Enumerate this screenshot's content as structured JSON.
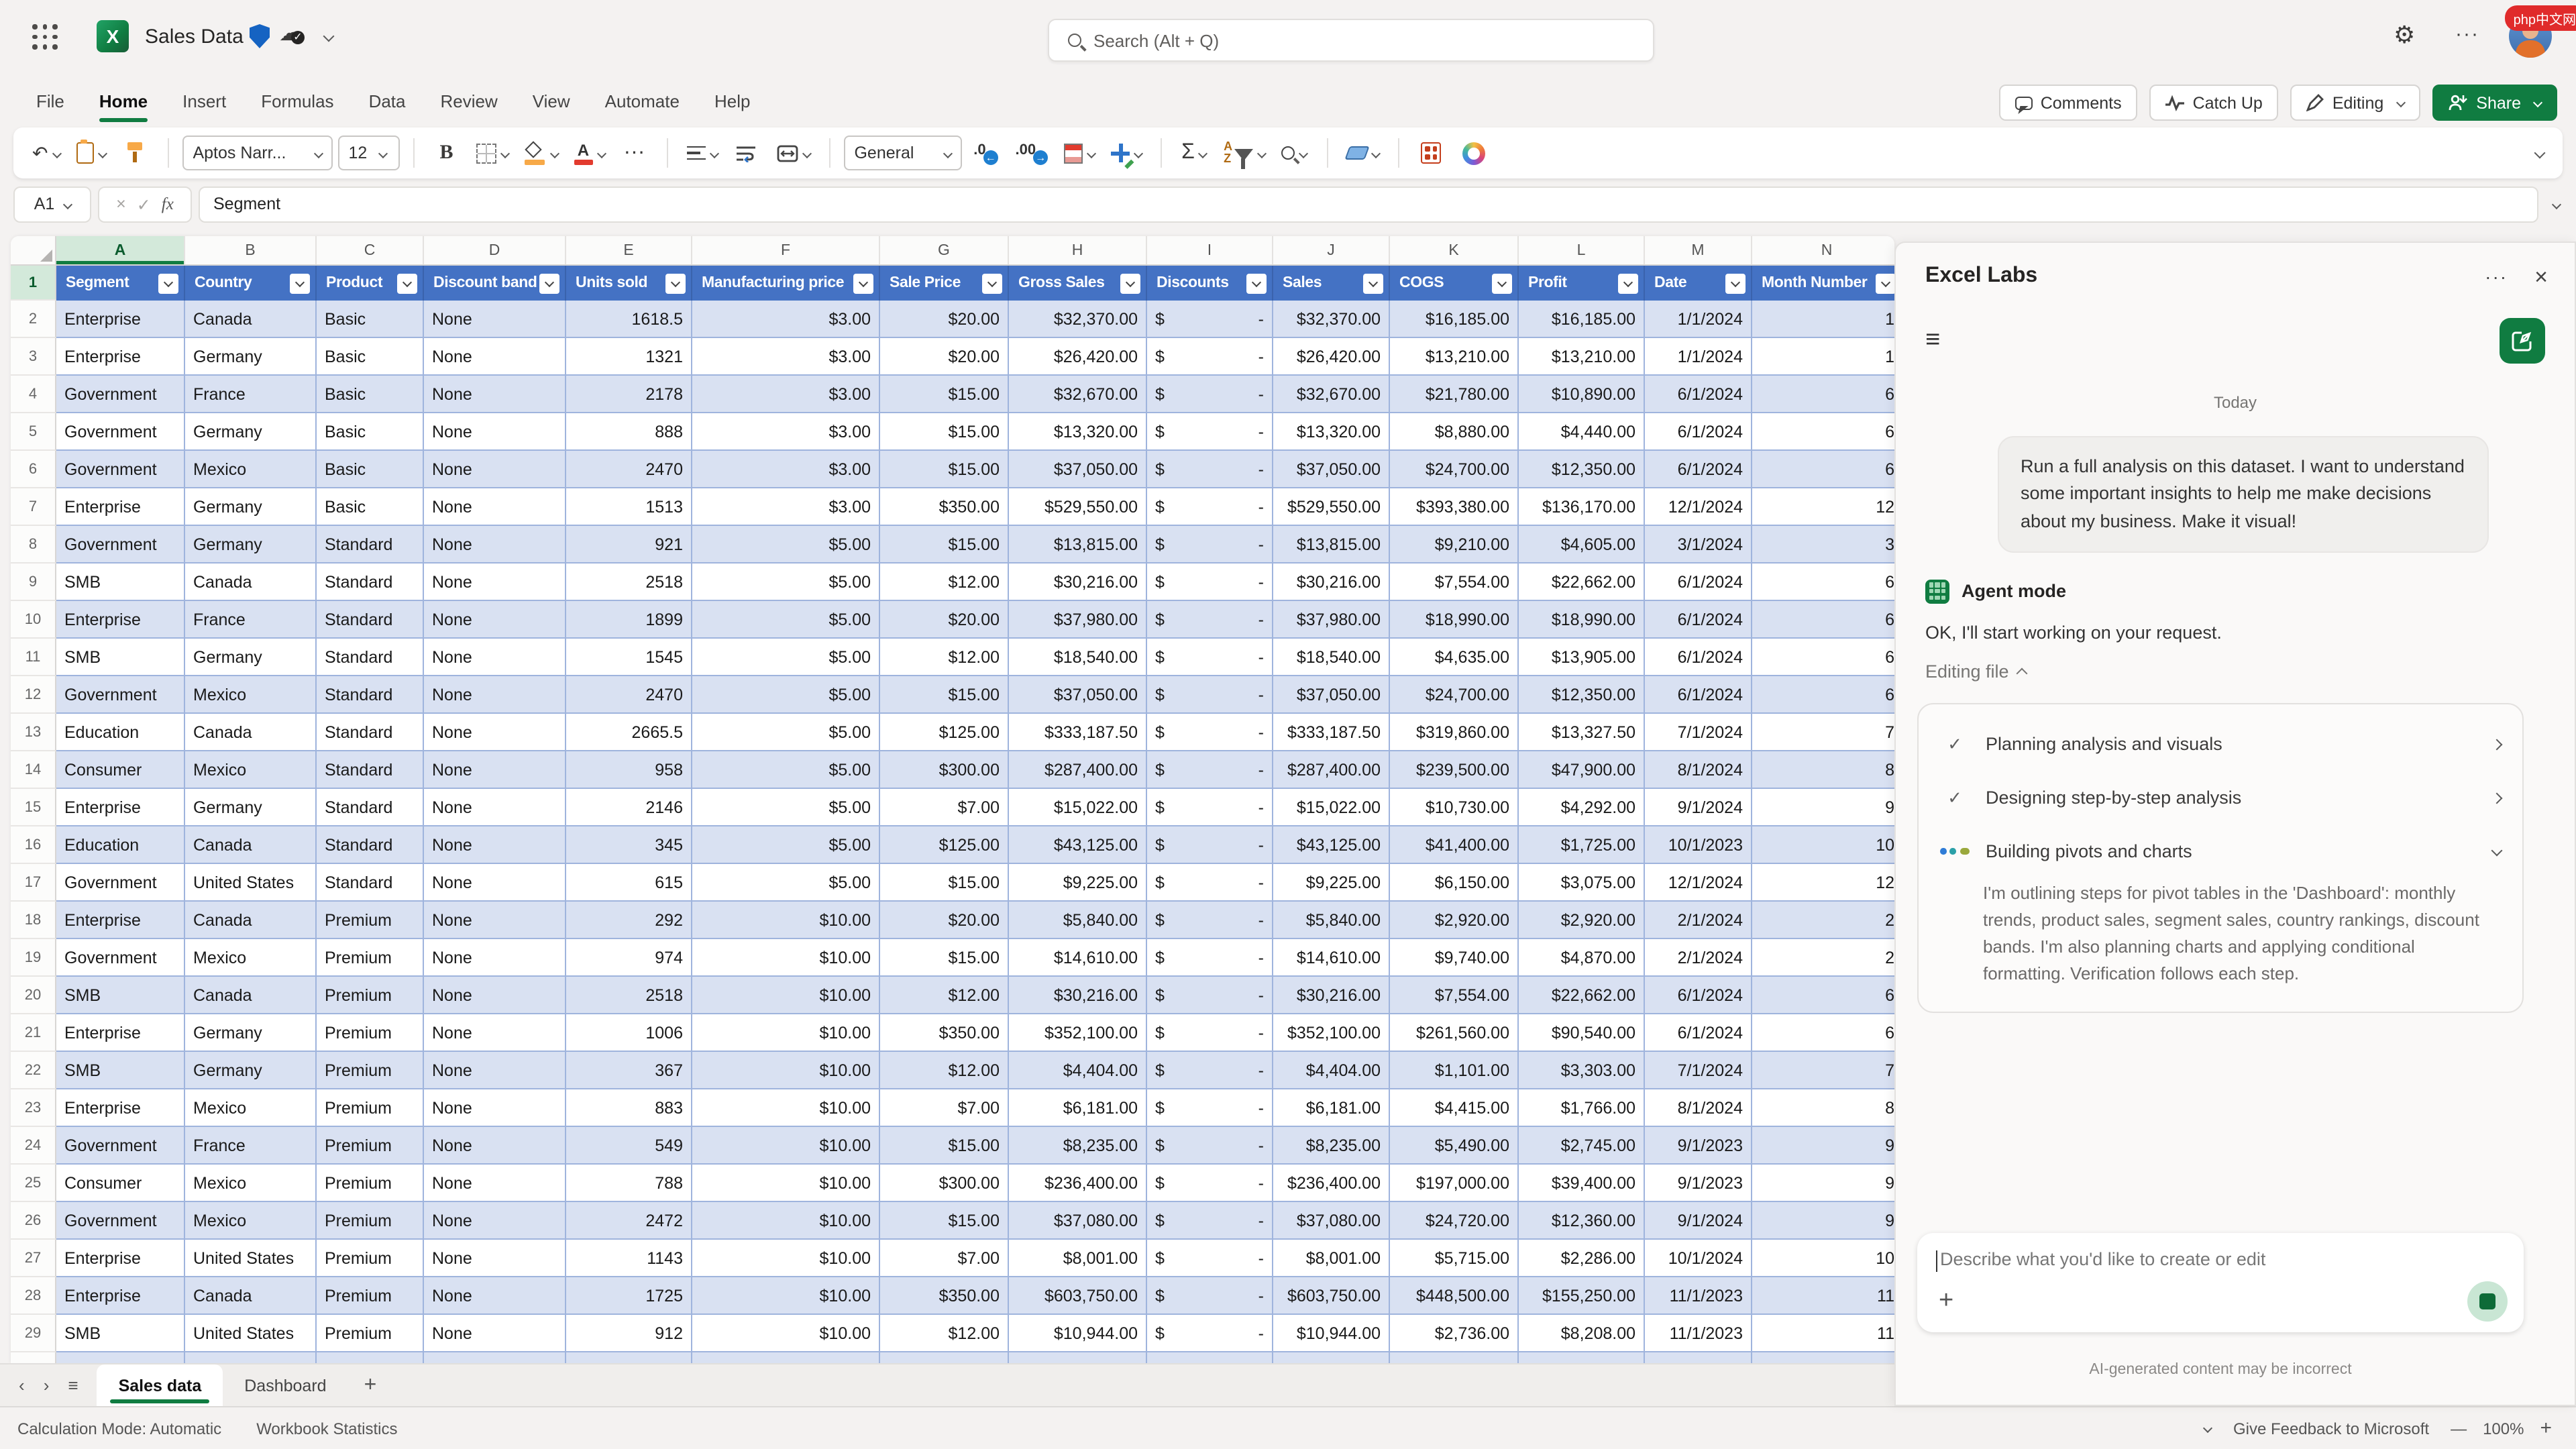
{
  "watermark": {
    "text": "php中文网"
  },
  "titlebar": {
    "title": "Sales Data",
    "search_placeholder": "Search (Alt + Q)"
  },
  "header_actions": {
    "comments": "Comments",
    "catch_up": "Catch Up",
    "editing": "Editing",
    "share": "Share"
  },
  "ribbon": {
    "tabs": [
      "File",
      "Home",
      "Insert",
      "Formulas",
      "Data",
      "Review",
      "View",
      "Automate",
      "Help"
    ],
    "active_tab": "Home"
  },
  "toolbar": {
    "font_name": "Aptos Narr...",
    "font_size": "12",
    "bold_label": "B",
    "number_format": "General",
    "decimal_left": ".0",
    "decimal_right": ".00",
    "autosum": "Σ",
    "sort_label": "A Z",
    "more": "···"
  },
  "formula_bar": {
    "name_box": "A1",
    "cancel": "×",
    "enter": "✓",
    "fx": "fx",
    "formula": "Segment"
  },
  "sheet": {
    "columns": [
      "A",
      "B",
      "C",
      "D",
      "E",
      "F",
      "G",
      "H",
      "I",
      "J",
      "K",
      "L",
      "M",
      "N"
    ],
    "selected_column": "A",
    "selected_row": "1",
    "discount_symbol": "$",
    "headers": [
      "Segment",
      "Country",
      "Product",
      "Discount band",
      "Units sold",
      "Manufacturing price",
      "Sale Price",
      "Gross Sales",
      "Discounts",
      "Sales",
      "COGS",
      "Profit",
      "Date",
      "Month Number"
    ],
    "rows": [
      [
        "Enterprise",
        "Canada",
        "Basic",
        "None",
        "1618.5",
        "$3.00",
        "$20.00",
        "$32,370.00",
        "-",
        "$32,370.00",
        "$16,185.00",
        "$16,185.00",
        "1/1/2024",
        "1"
      ],
      [
        "Enterprise",
        "Germany",
        "Basic",
        "None",
        "1321",
        "$3.00",
        "$20.00",
        "$26,420.00",
        "-",
        "$26,420.00",
        "$13,210.00",
        "$13,210.00",
        "1/1/2024",
        "1"
      ],
      [
        "Government",
        "France",
        "Basic",
        "None",
        "2178",
        "$3.00",
        "$15.00",
        "$32,670.00",
        "-",
        "$32,670.00",
        "$21,780.00",
        "$10,890.00",
        "6/1/2024",
        "6"
      ],
      [
        "Government",
        "Germany",
        "Basic",
        "None",
        "888",
        "$3.00",
        "$15.00",
        "$13,320.00",
        "-",
        "$13,320.00",
        "$8,880.00",
        "$4,440.00",
        "6/1/2024",
        "6"
      ],
      [
        "Government",
        "Mexico",
        "Basic",
        "None",
        "2470",
        "$3.00",
        "$15.00",
        "$37,050.00",
        "-",
        "$37,050.00",
        "$24,700.00",
        "$12,350.00",
        "6/1/2024",
        "6"
      ],
      [
        "Enterprise",
        "Germany",
        "Basic",
        "None",
        "1513",
        "$3.00",
        "$350.00",
        "$529,550.00",
        "-",
        "$529,550.00",
        "$393,380.00",
        "$136,170.00",
        "12/1/2024",
        "12"
      ],
      [
        "Government",
        "Germany",
        "Standard",
        "None",
        "921",
        "$5.00",
        "$15.00",
        "$13,815.00",
        "-",
        "$13,815.00",
        "$9,210.00",
        "$4,605.00",
        "3/1/2024",
        "3"
      ],
      [
        "SMB",
        "Canada",
        "Standard",
        "None",
        "2518",
        "$5.00",
        "$12.00",
        "$30,216.00",
        "-",
        "$30,216.00",
        "$7,554.00",
        "$22,662.00",
        "6/1/2024",
        "6"
      ],
      [
        "Enterprise",
        "France",
        "Standard",
        "None",
        "1899",
        "$5.00",
        "$20.00",
        "$37,980.00",
        "-",
        "$37,980.00",
        "$18,990.00",
        "$18,990.00",
        "6/1/2024",
        "6"
      ],
      [
        "SMB",
        "Germany",
        "Standard",
        "None",
        "1545",
        "$5.00",
        "$12.00",
        "$18,540.00",
        "-",
        "$18,540.00",
        "$4,635.00",
        "$13,905.00",
        "6/1/2024",
        "6"
      ],
      [
        "Government",
        "Mexico",
        "Standard",
        "None",
        "2470",
        "$5.00",
        "$15.00",
        "$37,050.00",
        "-",
        "$37,050.00",
        "$24,700.00",
        "$12,350.00",
        "6/1/2024",
        "6"
      ],
      [
        "Education",
        "Canada",
        "Standard",
        "None",
        "2665.5",
        "$5.00",
        "$125.00",
        "$333,187.50",
        "-",
        "$333,187.50",
        "$319,860.00",
        "$13,327.50",
        "7/1/2024",
        "7"
      ],
      [
        "Consumer",
        "Mexico",
        "Standard",
        "None",
        "958",
        "$5.00",
        "$300.00",
        "$287,400.00",
        "-",
        "$287,400.00",
        "$239,500.00",
        "$47,900.00",
        "8/1/2024",
        "8"
      ],
      [
        "Enterprise",
        "Germany",
        "Standard",
        "None",
        "2146",
        "$5.00",
        "$7.00",
        "$15,022.00",
        "-",
        "$15,022.00",
        "$10,730.00",
        "$4,292.00",
        "9/1/2024",
        "9"
      ],
      [
        "Education",
        "Canada",
        "Standard",
        "None",
        "345",
        "$5.00",
        "$125.00",
        "$43,125.00",
        "-",
        "$43,125.00",
        "$41,400.00",
        "$1,725.00",
        "10/1/2023",
        "10"
      ],
      [
        "Government",
        "United States",
        "Standard",
        "None",
        "615",
        "$5.00",
        "$15.00",
        "$9,225.00",
        "-",
        "$9,225.00",
        "$6,150.00",
        "$3,075.00",
        "12/1/2024",
        "12"
      ],
      [
        "Enterprise",
        "Canada",
        "Premium",
        "None",
        "292",
        "$10.00",
        "$20.00",
        "$5,840.00",
        "-",
        "$5,840.00",
        "$2,920.00",
        "$2,920.00",
        "2/1/2024",
        "2"
      ],
      [
        "Government",
        "Mexico",
        "Premium",
        "None",
        "974",
        "$10.00",
        "$15.00",
        "$14,610.00",
        "-",
        "$14,610.00",
        "$9,740.00",
        "$4,870.00",
        "2/1/2024",
        "2"
      ],
      [
        "SMB",
        "Canada",
        "Premium",
        "None",
        "2518",
        "$10.00",
        "$12.00",
        "$30,216.00",
        "-",
        "$30,216.00",
        "$7,554.00",
        "$22,662.00",
        "6/1/2024",
        "6"
      ],
      [
        "Enterprise",
        "Germany",
        "Premium",
        "None",
        "1006",
        "$10.00",
        "$350.00",
        "$352,100.00",
        "-",
        "$352,100.00",
        "$261,560.00",
        "$90,540.00",
        "6/1/2024",
        "6"
      ],
      [
        "SMB",
        "Germany",
        "Premium",
        "None",
        "367",
        "$10.00",
        "$12.00",
        "$4,404.00",
        "-",
        "$4,404.00",
        "$1,101.00",
        "$3,303.00",
        "7/1/2024",
        "7"
      ],
      [
        "Enterprise",
        "Mexico",
        "Premium",
        "None",
        "883",
        "$10.00",
        "$7.00",
        "$6,181.00",
        "-",
        "$6,181.00",
        "$4,415.00",
        "$1,766.00",
        "8/1/2024",
        "8"
      ],
      [
        "Government",
        "France",
        "Premium",
        "None",
        "549",
        "$10.00",
        "$15.00",
        "$8,235.00",
        "-",
        "$8,235.00",
        "$5,490.00",
        "$2,745.00",
        "9/1/2023",
        "9"
      ],
      [
        "Consumer",
        "Mexico",
        "Premium",
        "None",
        "788",
        "$10.00",
        "$300.00",
        "$236,400.00",
        "-",
        "$236,400.00",
        "$197,000.00",
        "$39,400.00",
        "9/1/2023",
        "9"
      ],
      [
        "Government",
        "Mexico",
        "Premium",
        "None",
        "2472",
        "$10.00",
        "$15.00",
        "$37,080.00",
        "-",
        "$37,080.00",
        "$24,720.00",
        "$12,360.00",
        "9/1/2024",
        "9"
      ],
      [
        "Enterprise",
        "United States",
        "Premium",
        "None",
        "1143",
        "$10.00",
        "$7.00",
        "$8,001.00",
        "-",
        "$8,001.00",
        "$5,715.00",
        "$2,286.00",
        "10/1/2024",
        "10"
      ],
      [
        "Enterprise",
        "Canada",
        "Premium",
        "None",
        "1725",
        "$10.00",
        "$350.00",
        "$603,750.00",
        "-",
        "$603,750.00",
        "$448,500.00",
        "$155,250.00",
        "11/1/2023",
        "11"
      ],
      [
        "SMB",
        "United States",
        "Premium",
        "None",
        "912",
        "$10.00",
        "$12.00",
        "$10,944.00",
        "-",
        "$10,944.00",
        "$2,736.00",
        "$8,208.00",
        "11/1/2023",
        "11"
      ]
    ]
  },
  "sheet_tabs": {
    "sheets": [
      "Sales data",
      "Dashboard"
    ],
    "active": "Sales data"
  },
  "statusbar": {
    "items": [
      "Calculation Mode: Automatic",
      "Workbook Statistics"
    ],
    "feedback": "Give Feedback to Microsoft",
    "zoom_out": "—",
    "zoom_level": "100%",
    "zoom_in": "+"
  },
  "panel": {
    "title": "Excel Labs",
    "today": "Today",
    "user_message": "Run a full analysis on this dataset. I want to understand some important insights to help me make decisions about my business. Make it visual!",
    "agent_mode_label": "Agent mode",
    "agent_reply": "OK, I'll start working on your request.",
    "editing_file_label": "Editing file",
    "steps": [
      {
        "label": "Planning analysis and visuals",
        "state": "done",
        "detail": ""
      },
      {
        "label": "Designing step-by-step analysis",
        "state": "done",
        "detail": ""
      },
      {
        "label": "Building pivots and charts",
        "state": "in-progress",
        "detail": "I'm outlining steps for pivot tables in the 'Dashboard': monthly trends, product sales, segment sales, country rankings, discount bands. I'm also planning charts and applying conditional formatting. Verification follows each step."
      }
    ],
    "input_placeholder": "Describe what you'd like to create or edit",
    "disclaimer": "AI-generated content may be incorrect"
  },
  "colors": {
    "accent_green": "#107C41",
    "header_blue": "#4472C4",
    "band_blue": "#D9E1F2"
  }
}
